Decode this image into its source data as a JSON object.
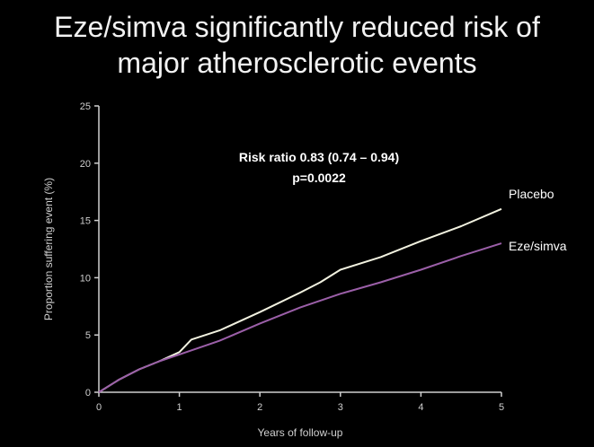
{
  "title": {
    "line1": "Eze/simva significantly reduced risk of",
    "line2": "major atherosclerotic events"
  },
  "chart_data": {
    "type": "line",
    "title": "Eze/simva significantly reduced risk of major atherosclerotic events",
    "xlabel": "Years of follow-up",
    "ylabel": "Proportion suffering event (%)",
    "xlim": [
      0,
      5
    ],
    "ylim": [
      0,
      25
    ],
    "x_ticks": [
      0,
      1,
      2,
      3,
      4,
      5
    ],
    "y_ticks": [
      0,
      5,
      10,
      15,
      20,
      25
    ],
    "grid": false,
    "annotation": {
      "line1": "Risk ratio 0.83 (0.74 – 0.94)",
      "line2": "p=0.0022"
    },
    "series": [
      {
        "name": "Placebo",
        "color": "#f2f2e0",
        "points": [
          [
            0,
            0
          ],
          [
            0.25,
            1.1
          ],
          [
            0.5,
            2.0
          ],
          [
            0.75,
            2.7
          ],
          [
            1.0,
            3.5
          ],
          [
            1.15,
            4.6
          ],
          [
            1.5,
            5.4
          ],
          [
            2.0,
            7.0
          ],
          [
            2.5,
            8.7
          ],
          [
            2.75,
            9.6
          ],
          [
            3.0,
            10.7
          ],
          [
            3.5,
            11.8
          ],
          [
            4.0,
            13.2
          ],
          [
            4.5,
            14.5
          ],
          [
            5.0,
            16.0
          ]
        ]
      },
      {
        "name": "Eze/simva",
        "color": "#9b5fa8",
        "points": [
          [
            0,
            0
          ],
          [
            0.25,
            1.1
          ],
          [
            0.5,
            2.0
          ],
          [
            0.75,
            2.7
          ],
          [
            1.0,
            3.3
          ],
          [
            1.5,
            4.5
          ],
          [
            2.0,
            6.0
          ],
          [
            2.5,
            7.4
          ],
          [
            3.0,
            8.6
          ],
          [
            3.5,
            9.6
          ],
          [
            4.0,
            10.7
          ],
          [
            4.5,
            11.9
          ],
          [
            5.0,
            13.0
          ]
        ]
      }
    ]
  }
}
